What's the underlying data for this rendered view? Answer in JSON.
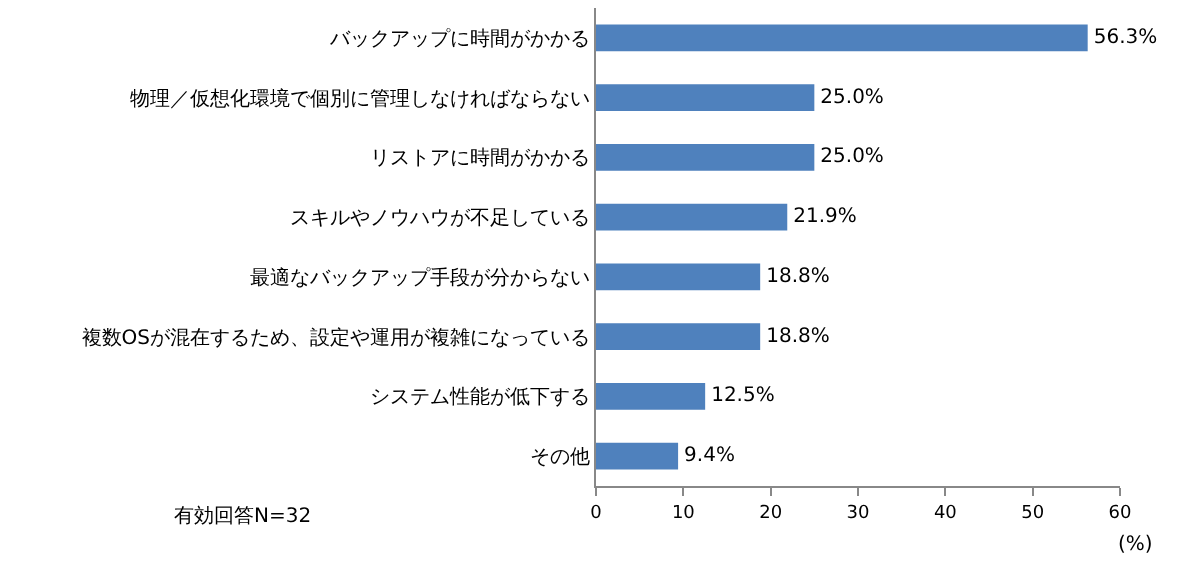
{
  "chart_data": {
    "type": "bar",
    "orientation": "horizontal",
    "categories": [
      "バックアップに時間がかかる",
      "物理／仮想化環境で個別に管理しなければならない",
      "リストアに時間がかかる",
      "スキルやノウハウが不足している",
      "最適なバックアップ手段が分からない",
      "複数OSが混在するため、設定や運用が複雑になっている",
      "システム性能が低下する",
      "その他"
    ],
    "values": [
      56.3,
      25.0,
      25.0,
      21.9,
      18.8,
      18.8,
      12.5,
      9.4
    ],
    "value_labels": [
      "56.3%",
      "25.0%",
      "25.0%",
      "21.9%",
      "18.8%",
      "18.8%",
      "12.5%",
      "9.4%"
    ],
    "color": "#4f81bd",
    "xlim": [
      0,
      60
    ],
    "xticks": [
      0,
      10,
      20,
      30,
      40,
      50,
      60
    ],
    "xlabel": "(%)",
    "annotations": [
      "有効回答N=32"
    ],
    "grid": false,
    "legend": false
  }
}
